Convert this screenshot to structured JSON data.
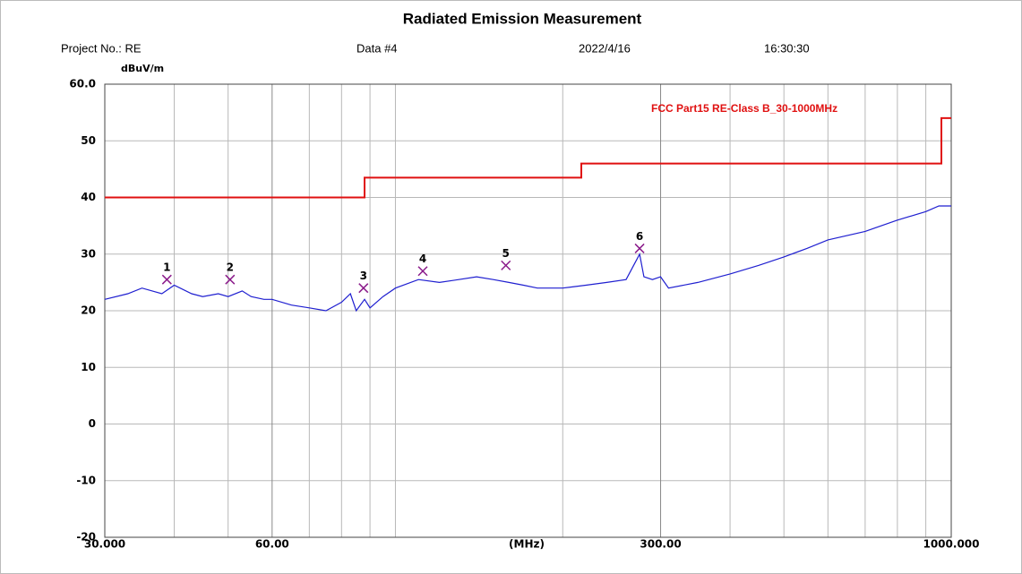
{
  "chart_data": {
    "type": "line",
    "title": "Radiated Emission Measurement",
    "header": [
      "Project No.: RE",
      "Data #4",
      "2022/4/16",
      "16:30:30"
    ],
    "ylabel": "dBuV/m",
    "xlabel": "(MHz)",
    "log_x": true,
    "grid": true,
    "xlim": [
      30,
      1000
    ],
    "ylim": [
      -20,
      60
    ],
    "xticks": [
      {
        "value": 30,
        "label": "30.000"
      },
      {
        "value": 60,
        "label": "60.00"
      },
      {
        "value": 300,
        "label": "300.00"
      },
      {
        "value": 1000,
        "label": "1000.000"
      }
    ],
    "xgrid": [
      40,
      50,
      70,
      80,
      90,
      100,
      200,
      400,
      500,
      600,
      700,
      800,
      900
    ],
    "yticks": [
      {
        "value": 60,
        "label": "60.0"
      },
      50,
      40,
      30,
      20,
      10,
      0,
      -10,
      -20
    ],
    "series": [
      {
        "name": "FCC Part15 RE-Class B_30-1000MHz",
        "color": "#e01010",
        "x": [
          30,
          88,
          88,
          216,
          216,
          960,
          960,
          1000
        ],
        "values": [
          40,
          40,
          43.5,
          43.5,
          46,
          46,
          54,
          54
        ]
      },
      {
        "color": "#1f1fd0",
        "x": [
          30,
          33,
          35,
          38,
          40,
          43,
          45,
          48,
          50,
          53,
          55,
          58,
          60,
          65,
          70,
          75,
          80,
          83,
          85,
          88,
          90,
          95,
          100,
          110,
          120,
          130,
          140,
          150,
          160,
          170,
          180,
          200,
          220,
          240,
          260,
          275,
          280,
          290,
          300,
          310,
          350,
          400,
          450,
          500,
          550,
          600,
          700,
          800,
          900,
          950,
          1000
        ],
        "values": [
          22,
          23,
          24,
          23,
          24.5,
          23,
          22.5,
          23,
          22.5,
          23.5,
          22.5,
          22,
          22,
          21,
          20.5,
          20,
          21.5,
          23,
          20,
          22,
          20.5,
          22.5,
          24,
          25.5,
          25,
          25.5,
          26,
          25.5,
          25,
          24.5,
          24,
          24,
          24.5,
          25,
          25.5,
          30,
          26,
          25.5,
          26,
          24,
          25,
          26.5,
          28,
          29.5,
          31,
          32.5,
          34,
          36,
          37.5,
          38.5,
          38.5
        ]
      }
    ],
    "markers": {
      "color": "#8a1a8a",
      "labels": [
        "1",
        "2",
        "3",
        "4",
        "5",
        "6"
      ],
      "x": [
        38.8,
        50.4,
        87.6,
        112,
        158,
        275
      ],
      "values": [
        25.5,
        25.5,
        24,
        27,
        28,
        31
      ]
    }
  }
}
